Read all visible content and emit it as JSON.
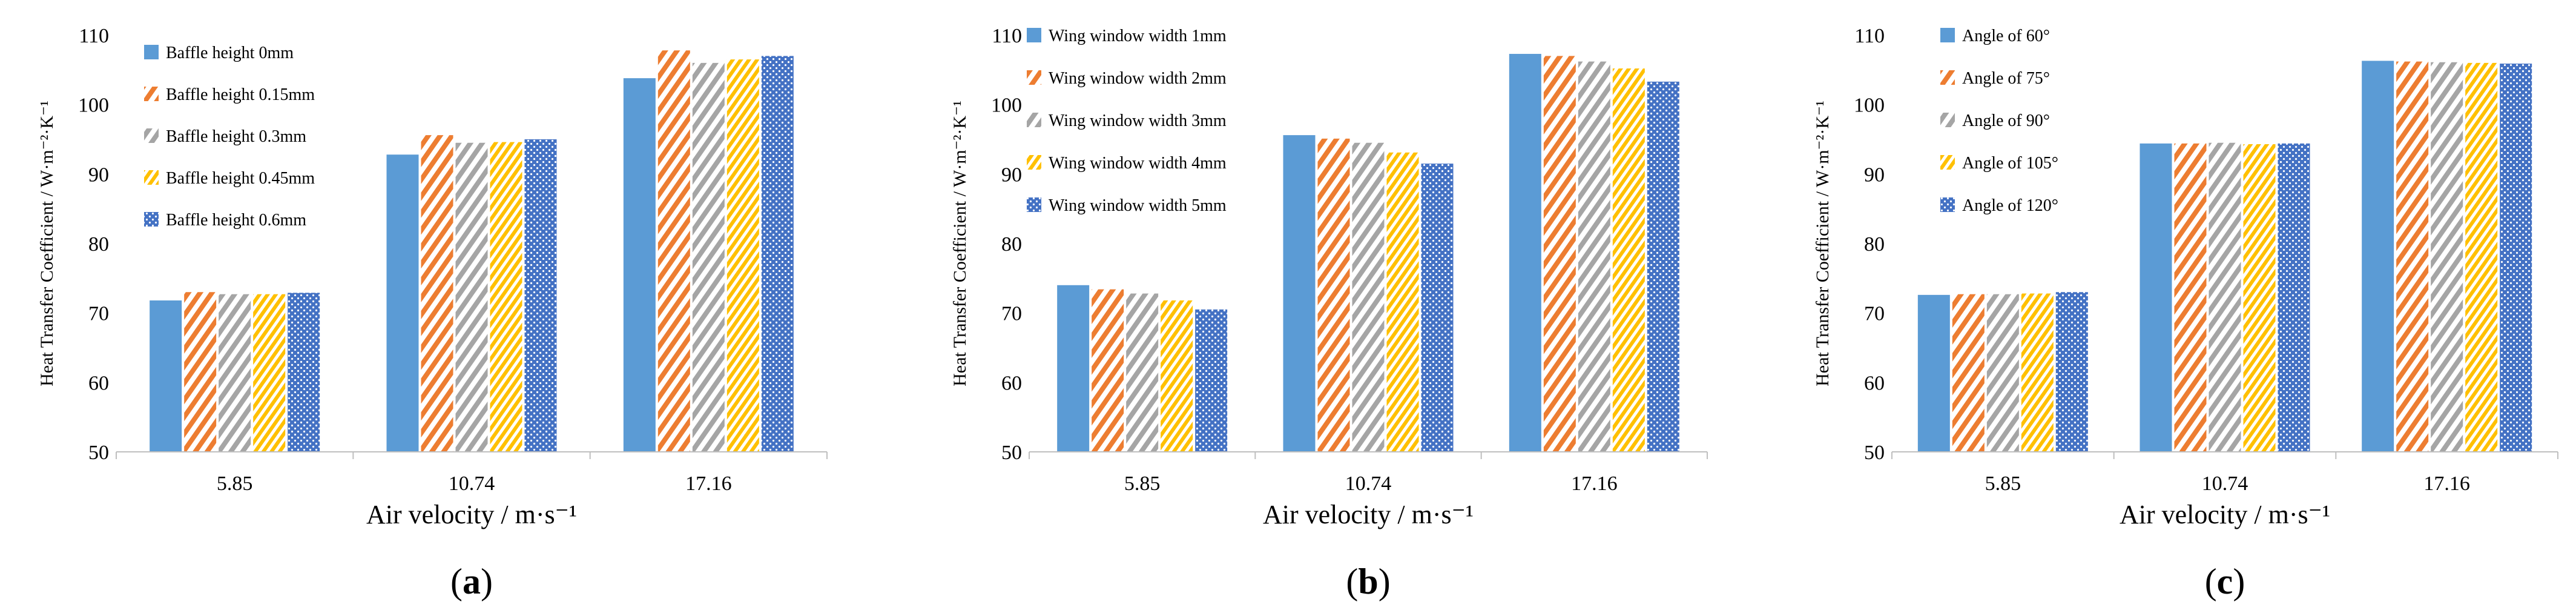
{
  "figure": {
    "colors": {
      "blue": "#5b9bd5",
      "orange": "#ed7d31",
      "gray": "#a5a5a5",
      "yellow": "#ffc000",
      "darkblue": "#4472c4",
      "axis": "#bfbfbf"
    }
  },
  "chart_data": [
    {
      "type": "bar",
      "panel_label": "a",
      "title": "",
      "xlabel": "Air velocity / m·s⁻¹",
      "ylabel": "Heat Transfer Coefficient / W·m⁻²·K⁻¹",
      "categories": [
        "5.85",
        "10.74",
        "17.16"
      ],
      "ylim": [
        50,
        110
      ],
      "yticks": [
        50,
        60,
        70,
        80,
        90,
        100,
        110
      ],
      "grid": false,
      "legend_position": "top-left",
      "series": [
        {
          "name": "Baffle height 0mm",
          "values": [
            71.8,
            92.8,
            103.8
          ],
          "pattern": "solid",
          "color": "#5b9bd5"
        },
        {
          "name": "Baffle height 0.15mm",
          "values": [
            73.0,
            95.6,
            107.8
          ],
          "pattern": "wide-diagonal",
          "color": "#ed7d31"
        },
        {
          "name": "Baffle height 0.3mm",
          "values": [
            72.7,
            94.5,
            106.0
          ],
          "pattern": "wide-diagonal",
          "color": "#a5a5a5"
        },
        {
          "name": "Baffle height 0.45mm",
          "values": [
            72.7,
            94.6,
            106.5
          ],
          "pattern": "diagonal",
          "color": "#ffc000"
        },
        {
          "name": "Baffle height 0.6mm",
          "values": [
            72.9,
            95.0,
            107.0
          ],
          "pattern": "dots",
          "color": "#4472c4"
        }
      ]
    },
    {
      "type": "bar",
      "panel_label": "b",
      "title": "",
      "xlabel": "Air velocity / m·s⁻¹",
      "ylabel": "Heat Transfer Coefficient / W·m⁻²·K⁻¹",
      "categories": [
        "5.85",
        "10.74",
        "17.16"
      ],
      "ylim": [
        50,
        110
      ],
      "yticks": [
        50,
        60,
        70,
        80,
        90,
        100,
        110
      ],
      "grid": false,
      "legend_position": "top-left",
      "series": [
        {
          "name": "Wing window width 1mm",
          "values": [
            74.0,
            95.6,
            107.3
          ],
          "pattern": "solid",
          "color": "#5b9bd5"
        },
        {
          "name": "Wing window width 2mm",
          "values": [
            73.4,
            95.1,
            107.0
          ],
          "pattern": "wide-diagonal",
          "color": "#ed7d31"
        },
        {
          "name": "Wing window width 3mm",
          "values": [
            72.8,
            94.5,
            106.2
          ],
          "pattern": "wide-diagonal",
          "color": "#a5a5a5"
        },
        {
          "name": "Wing window width 4mm",
          "values": [
            71.8,
            93.1,
            105.2
          ],
          "pattern": "diagonal",
          "color": "#ffc000"
        },
        {
          "name": "Wing window width 5mm",
          "values": [
            70.5,
            91.5,
            103.3
          ],
          "pattern": "dots",
          "color": "#4472c4"
        }
      ]
    },
    {
      "type": "bar",
      "panel_label": "c",
      "title": "",
      "xlabel": "Air velocity / m·s⁻¹",
      "ylabel": "Heat Transfer Coefficient / W·m⁻²·K⁻¹",
      "categories": [
        "5.85",
        "10.74",
        "17.16"
      ],
      "ylim": [
        50,
        110
      ],
      "yticks": [
        50,
        60,
        70,
        80,
        90,
        100,
        110
      ],
      "grid": false,
      "legend_position": "top-left",
      "series": [
        {
          "name": "Angle of 60°",
          "values": [
            72.6,
            94.4,
            106.3
          ],
          "pattern": "solid",
          "color": "#5b9bd5"
        },
        {
          "name": "Angle of 75°",
          "values": [
            72.7,
            94.4,
            106.2
          ],
          "pattern": "wide-diagonal",
          "color": "#ed7d31"
        },
        {
          "name": "Angle of 90°",
          "values": [
            72.7,
            94.5,
            106.1
          ],
          "pattern": "wide-diagonal",
          "color": "#a5a5a5"
        },
        {
          "name": "Angle of 105°",
          "values": [
            72.8,
            94.3,
            106.0
          ],
          "pattern": "diagonal",
          "color": "#ffc000"
        },
        {
          "name": "Angle of 120°",
          "values": [
            73.0,
            94.4,
            105.9
          ],
          "pattern": "dots",
          "color": "#4472c4"
        }
      ]
    }
  ]
}
